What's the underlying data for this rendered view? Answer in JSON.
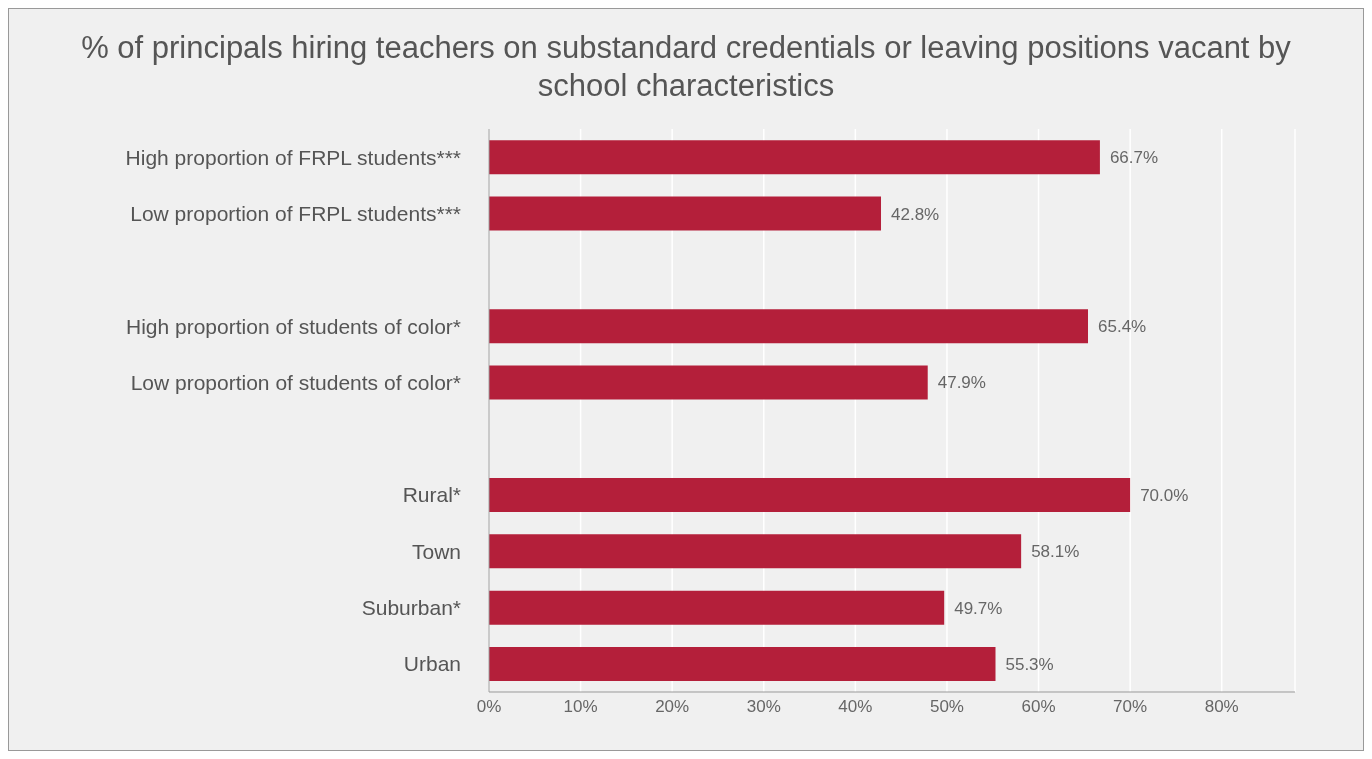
{
  "chart_data": {
    "type": "bar",
    "orientation": "horizontal",
    "title": "% of principals hiring teachers on substandard credentials or leaving positions vacant by school characteristics",
    "categories": [
      "High proportion of FRPL students***",
      "Low proportion of FRPL students***",
      null,
      "High proportion of students of color*",
      "Low proportion of students of color*",
      null,
      "Rural*",
      "Town",
      "Suburban*",
      "Urban"
    ],
    "values": [
      66.7,
      42.8,
      null,
      65.4,
      47.9,
      null,
      70.0,
      58.1,
      49.7,
      55.3
    ],
    "value_labels": [
      "66.7%",
      "42.8%",
      null,
      "65.4%",
      "47.9%",
      null,
      "70.0%",
      "58.1%",
      "49.7%",
      "55.3%"
    ],
    "color": "#b41f3a",
    "xlim": [
      0,
      88
    ],
    "xticks": [
      {
        "value": 0,
        "label": "0%"
      },
      {
        "value": 10,
        "label": "10%"
      },
      {
        "value": 20,
        "label": "20%"
      },
      {
        "value": 30,
        "label": "30%"
      },
      {
        "value": 40,
        "label": "40%"
      },
      {
        "value": 50,
        "label": "50%"
      },
      {
        "value": 60,
        "label": "60%"
      },
      {
        "value": 70,
        "label": "70%"
      },
      {
        "value": 80,
        "label": "80%"
      }
    ],
    "grid": "x"
  }
}
